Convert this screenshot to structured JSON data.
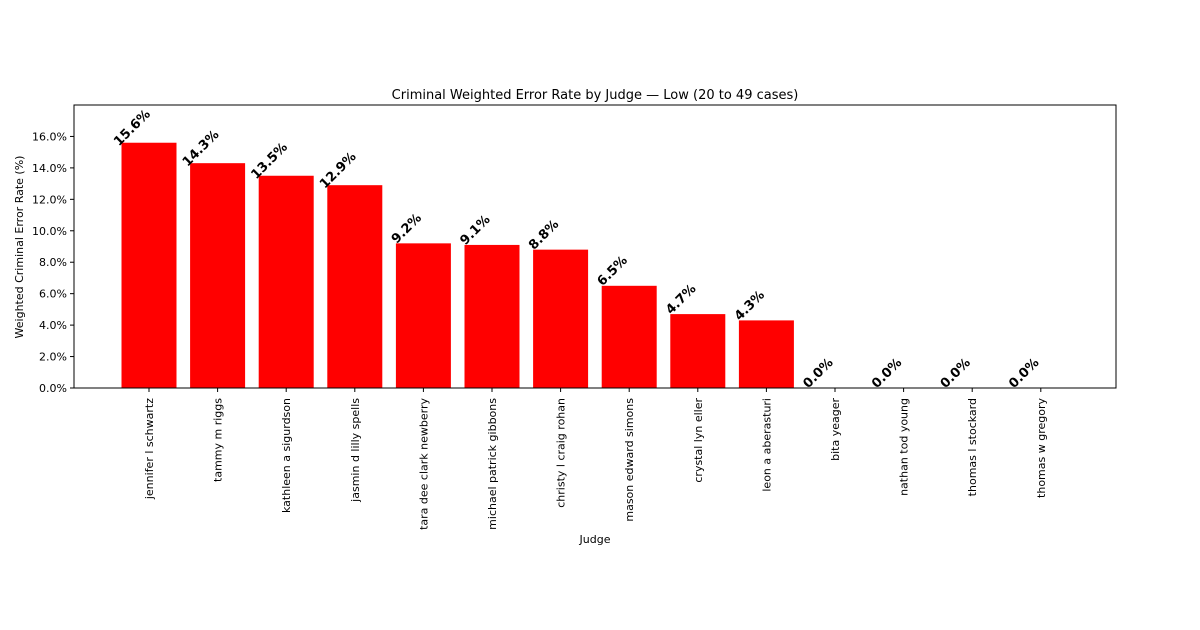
{
  "chart_data": {
    "type": "bar",
    "title": "Criminal Weighted Error Rate by Judge — Low (20 to 49 cases)",
    "xlabel": "Judge",
    "ylabel": "Weighted Criminal Error Rate (%)",
    "ylim": [
      0,
      18
    ],
    "yticks": [
      0,
      2,
      4,
      6,
      8,
      10,
      12,
      14,
      16
    ],
    "ytick_labels": [
      "0.0%",
      "2.0%",
      "4.0%",
      "6.0%",
      "8.0%",
      "10.0%",
      "12.0%",
      "14.0%",
      "16.0%"
    ],
    "grid": false,
    "bar_color": "#ff0000",
    "categories": [
      "jennifer l schwartz",
      "tammy m riggs",
      "kathleen a sigurdson",
      "jasmin d lilly spells",
      "tara dee clark newberry",
      "michael patrick gibbons",
      "christy l craig rohan",
      "mason edward simons",
      "crystal lyn eller",
      "leon a aberasturi",
      "bita yeager",
      "nathan tod young",
      "thomas l stockard",
      "thomas w gregory"
    ],
    "values": [
      15.6,
      14.3,
      13.5,
      12.9,
      9.2,
      9.1,
      8.8,
      6.5,
      4.7,
      4.3,
      0.0,
      0.0,
      0.0,
      0.0
    ],
    "value_labels": [
      "15.6%",
      "14.3%",
      "13.5%",
      "12.9%",
      "9.2%",
      "9.1%",
      "8.8%",
      "6.5%",
      "4.7%",
      "4.3%",
      "0.0%",
      "0.0%",
      "0.0%",
      "0.0%"
    ]
  }
}
